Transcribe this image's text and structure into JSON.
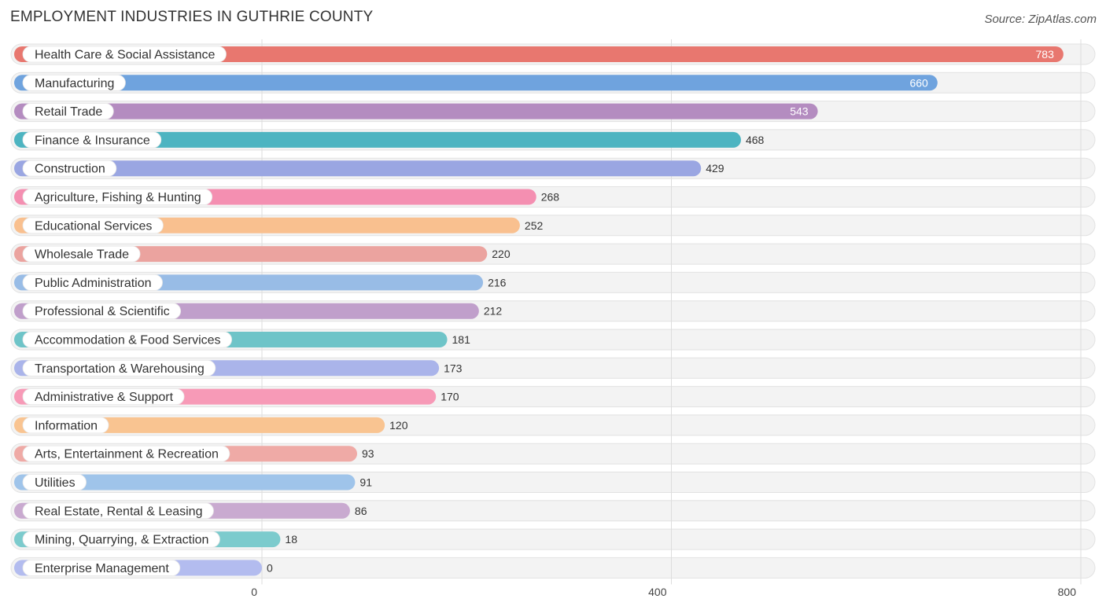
{
  "chart_data": {
    "type": "bar",
    "orientation": "horizontal",
    "title": "EMPLOYMENT INDUSTRIES IN GUTHRIE COUNTY",
    "source": "Source: ZipAtlas.com",
    "categories": [
      "Health Care & Social Assistance",
      "Manufacturing",
      "Retail Trade",
      "Finance & Insurance",
      "Construction",
      "Agriculture, Fishing & Hunting",
      "Educational Services",
      "Wholesale Trade",
      "Public Administration",
      "Professional & Scientific",
      "Accommodation & Food Services",
      "Transportation & Warehousing",
      "Administrative & Support",
      "Information",
      "Arts, Entertainment & Recreation",
      "Utilities",
      "Real Estate, Rental & Leasing",
      "Mining, Quarrying, & Extraction",
      "Enterprise Management"
    ],
    "values": [
      783,
      660,
      543,
      468,
      429,
      268,
      252,
      220,
      216,
      212,
      181,
      173,
      170,
      120,
      93,
      91,
      86,
      18,
      0
    ],
    "colors": [
      "#e8776f",
      "#6fa3de",
      "#b48cc0",
      "#4db4c1",
      "#9aa6e2",
      "#f48fb1",
      "#f9c08f",
      "#eba39f",
      "#98bce6",
      "#c09fcb",
      "#6ec4c8",
      "#aab4ea",
      "#f79ab7",
      "#f9c491",
      "#efaaa6",
      "#9fc4ea",
      "#c9aad0",
      "#7ccbcd",
      "#b3bcef"
    ],
    "xlim": [
      0,
      800
    ],
    "xticks": [
      0,
      400,
      800
    ],
    "xtick_labels": [
      "0",
      "400",
      "800"
    ],
    "grid": true
  }
}
